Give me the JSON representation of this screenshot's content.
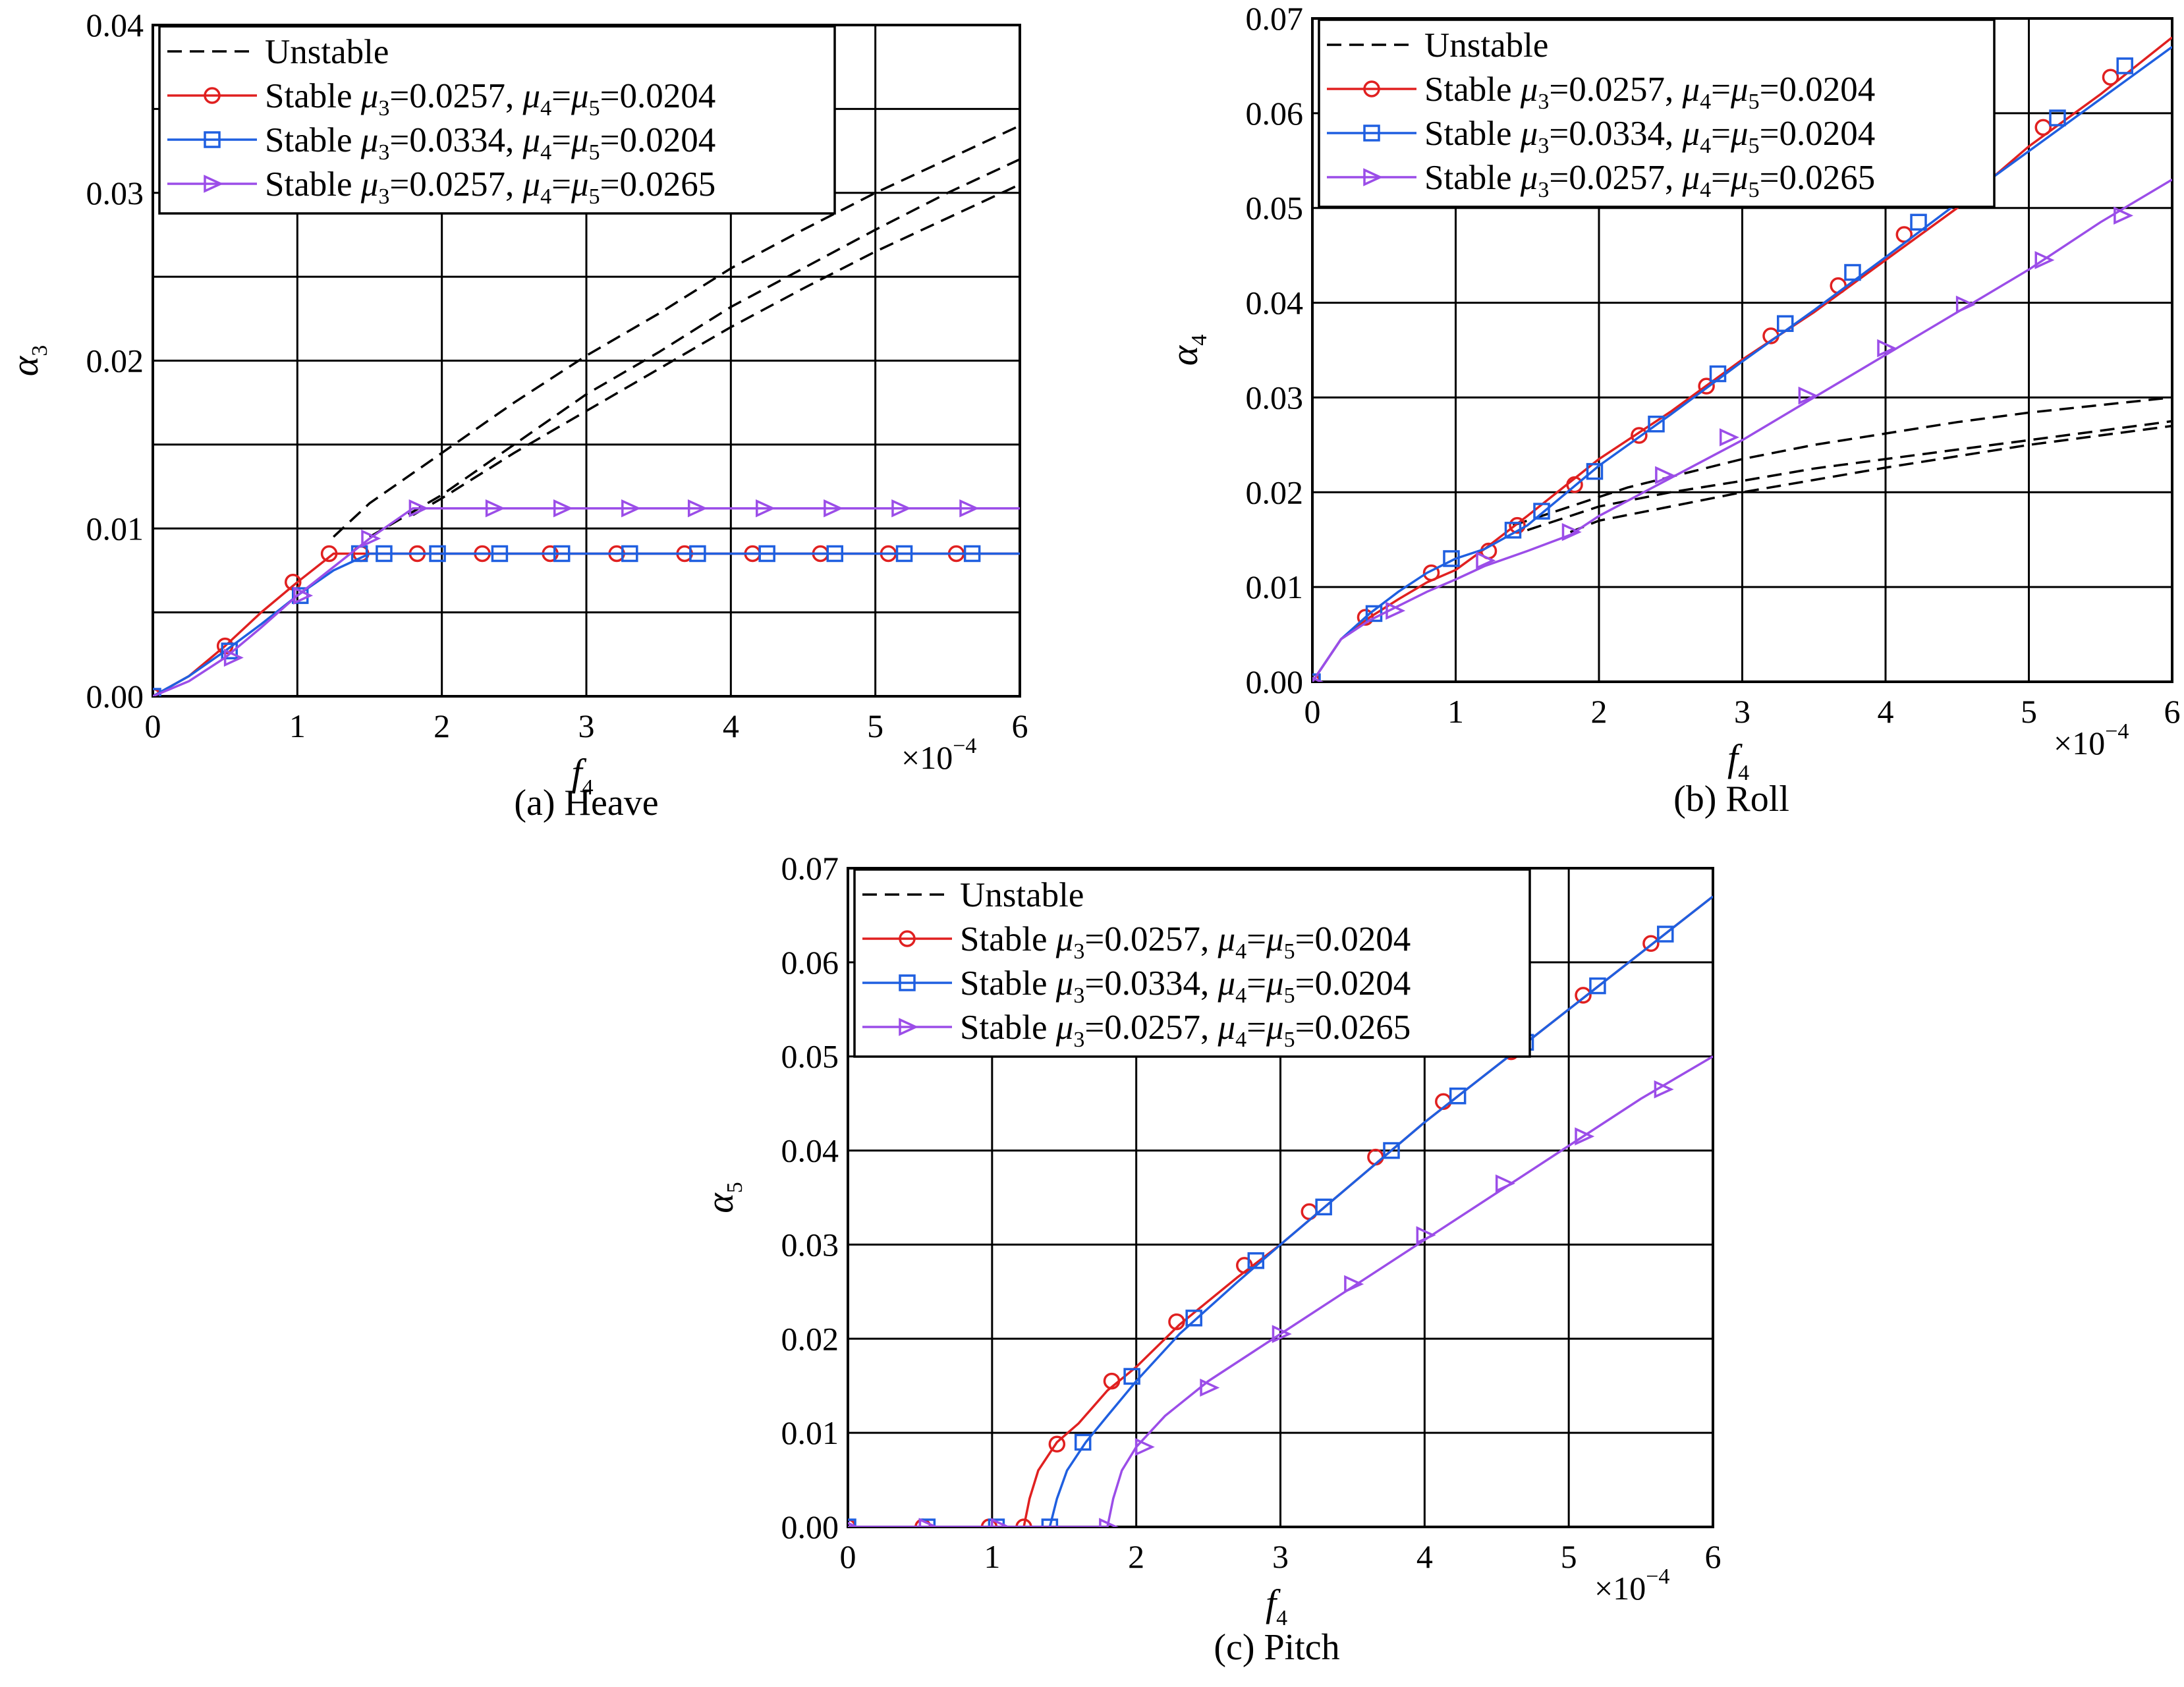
{
  "chart_data": [
    {
      "type": "line",
      "caption": "(a) Heave",
      "xlabel": "f",
      "xlabel_sub": "4",
      "ylabel": "α",
      "ylabel_sub": "3",
      "x_multiplier": "×10",
      "x_multiplier_exp": "−4",
      "xlim": [
        0,
        6
      ],
      "ylim": [
        0,
        0.04
      ],
      "x_ticks": [
        "0",
        "1",
        "2",
        "3",
        "4",
        "5",
        "6"
      ],
      "y_ticks": [
        "0.00",
        "0.01",
        "0.02",
        "0.03",
        "0.04"
      ],
      "x_grid": [
        0,
        1,
        2,
        3,
        4,
        5,
        6
      ],
      "y_grid": [
        0.005,
        0.01,
        0.015,
        0.02,
        0.025,
        0.03,
        0.035
      ],
      "legend": [
        {
          "kind": "dash",
          "color": "#000000",
          "marker": "none",
          "text": "Unstable"
        },
        {
          "kind": "solid",
          "color": "#e02020",
          "marker": "circle",
          "text": "Stable",
          "mu3": "0.0257",
          "mu45": "0.0204"
        },
        {
          "kind": "solid",
          "color": "#1f5fe0",
          "marker": "square",
          "text": "Stable",
          "mu3": "0.0334",
          "mu45": "0.0204"
        },
        {
          "kind": "solid",
          "color": "#9b4de8",
          "marker": "triangle",
          "text": "Stable",
          "mu3": "0.0257",
          "mu45": "0.0265"
        }
      ],
      "series": [
        {
          "style": "unstable",
          "color": "#000000",
          "x": [
            1.25,
            1.5,
            2,
            2.5,
            3,
            3.5,
            4,
            4.5,
            5,
            5.5,
            6
          ],
          "y": [
            0.0095,
            0.0115,
            0.0145,
            0.0175,
            0.0203,
            0.0228,
            0.0255,
            0.0278,
            0.03,
            0.032,
            0.034
          ]
        },
        {
          "style": "unstable",
          "color": "#000000",
          "x": [
            1.5,
            2,
            2.5,
            3,
            3.5,
            4,
            4.5,
            5,
            5.5,
            6
          ],
          "y": [
            0.0095,
            0.012,
            0.015,
            0.018,
            0.0205,
            0.0232,
            0.0255,
            0.0278,
            0.03,
            0.032
          ]
        },
        {
          "style": "unstable",
          "color": "#000000",
          "x": [
            1.8,
            2,
            2.5,
            3,
            3.5,
            4,
            4.5,
            5,
            5.5,
            6
          ],
          "y": [
            0.0108,
            0.0118,
            0.0145,
            0.017,
            0.0195,
            0.022,
            0.0243,
            0.0265,
            0.0285,
            0.0305
          ]
        },
        {
          "style": "stable",
          "color": "#e02020",
          "marker": "circle",
          "x": [
            0,
            0.25,
            0.5,
            0.75,
            1,
            1.25,
            1.5,
            2,
            2.5,
            3,
            3.5,
            4,
            4.5,
            5,
            5.5,
            6
          ],
          "y": [
            0,
            0.0012,
            0.003,
            0.005,
            0.0068,
            0.0085,
            0.0085,
            0.0085,
            0.0085,
            0.0085,
            0.0085,
            0.0085,
            0.0085,
            0.0085,
            0.0085,
            0.0085
          ],
          "mx": [
            0,
            0.5,
            0.97,
            1.22,
            1.44,
            1.83,
            2.28,
            2.75,
            3.21,
            3.68,
            4.15,
            4.62,
            5.09,
            5.56
          ],
          "my": [
            0,
            0.003,
            0.0068,
            0.0085,
            0.0085,
            0.0085,
            0.0085,
            0.0085,
            0.0085,
            0.0085,
            0.0085,
            0.0085,
            0.0085,
            0.0085
          ]
        },
        {
          "style": "stable",
          "color": "#1f5fe0",
          "marker": "square",
          "x": [
            0,
            0.25,
            0.5,
            0.75,
            1,
            1.25,
            1.5,
            2,
            2.5,
            3,
            3.5,
            4,
            4.5,
            5,
            5.5,
            6
          ],
          "y": [
            0,
            0.0012,
            0.0027,
            0.0043,
            0.006,
            0.0075,
            0.0085,
            0.0085,
            0.0085,
            0.0085,
            0.0085,
            0.0085,
            0.0085,
            0.0085,
            0.0085,
            0.0085
          ],
          "mx": [
            0,
            0.53,
            1.02,
            1.43,
            1.6,
            1.97,
            2.4,
            2.83,
            3.3,
            3.77,
            4.25,
            4.72,
            5.2,
            5.67
          ],
          "my": [
            0,
            0.0027,
            0.006,
            0.0085,
            0.0085,
            0.0085,
            0.0085,
            0.0085,
            0.0085,
            0.0085,
            0.0085,
            0.0085,
            0.0085,
            0.0085
          ]
        },
        {
          "style": "stable",
          "color": "#9b4de8",
          "marker": "triangle",
          "x": [
            0,
            0.25,
            0.5,
            0.75,
            1,
            1.25,
            1.5,
            1.8,
            2,
            2.5,
            3,
            3.5,
            4,
            4.5,
            5,
            5.5,
            6
          ],
          "y": [
            0,
            0.0009,
            0.0023,
            0.0041,
            0.006,
            0.0077,
            0.0094,
            0.0112,
            0.0112,
            0.0112,
            0.0112,
            0.0112,
            0.0112,
            0.0112,
            0.0112,
            0.0112,
            0.0112
          ],
          "mx": [
            0.55,
            1.03,
            1.5,
            1.83,
            2.36,
            2.83,
            3.3,
            3.76,
            4.23,
            4.7,
            5.17,
            5.64
          ],
          "my": [
            0.0023,
            0.006,
            0.0094,
            0.0112,
            0.0112,
            0.0112,
            0.0112,
            0.0112,
            0.0112,
            0.0112,
            0.0112,
            0.0112
          ]
        }
      ]
    },
    {
      "type": "line",
      "caption": "(b) Roll",
      "xlabel": "f",
      "xlabel_sub": "4",
      "ylabel": "α",
      "ylabel_sub": "4",
      "x_multiplier": "×10",
      "x_multiplier_exp": "−4",
      "xlim": [
        0,
        6
      ],
      "ylim": [
        0,
        0.07
      ],
      "x_ticks": [
        "0",
        "1",
        "2",
        "3",
        "4",
        "5",
        "6"
      ],
      "y_ticks": [
        "0.00",
        "0.01",
        "0.02",
        "0.03",
        "0.04",
        "0.05",
        "0.06",
        "0.07"
      ],
      "x_grid": [
        0,
        1,
        2,
        3,
        4,
        5,
        6
      ],
      "y_grid": [
        0.01,
        0.02,
        0.03,
        0.04,
        0.05,
        0.06
      ],
      "legend": [
        {
          "kind": "dash",
          "color": "#000000",
          "marker": "none",
          "text": "Unstable"
        },
        {
          "kind": "solid",
          "color": "#e02020",
          "marker": "circle",
          "text": "Stable",
          "mu3": "0.0257",
          "mu45": "0.0204"
        },
        {
          "kind": "solid",
          "color": "#1f5fe0",
          "marker": "square",
          "text": "Stable",
          "mu3": "0.0334",
          "mu45": "0.0204"
        },
        {
          "kind": "solid",
          "color": "#9b4de8",
          "marker": "triangle",
          "text": "Stable",
          "mu3": "0.0257",
          "mu45": "0.0265"
        }
      ],
      "series": [
        {
          "style": "unstable",
          "color": "#000000",
          "x": [
            1.4,
            1.8,
            2.2,
            2.6,
            3,
            3.5,
            4,
            4.5,
            5,
            5.5,
            6
          ],
          "y": [
            0.0165,
            0.0185,
            0.0205,
            0.022,
            0.0235,
            0.025,
            0.0262,
            0.0274,
            0.0284,
            0.0292,
            0.03
          ]
        },
        {
          "style": "unstable",
          "color": "#000000",
          "x": [
            1.5,
            2,
            2.5,
            3,
            3.5,
            4,
            4.5,
            5,
            5.5,
            6
          ],
          "y": [
            0.016,
            0.0185,
            0.02,
            0.0212,
            0.0225,
            0.0235,
            0.0245,
            0.0255,
            0.0265,
            0.0275
          ]
        },
        {
          "style": "unstable",
          "color": "#000000",
          "x": [
            1.8,
            2,
            2.5,
            3,
            3.5,
            4,
            4.5,
            5,
            5.5,
            6
          ],
          "y": [
            0.0158,
            0.017,
            0.0185,
            0.02,
            0.0213,
            0.0226,
            0.0238,
            0.025,
            0.026,
            0.027
          ]
        },
        {
          "style": "stable",
          "color": "#e02020",
          "marker": "circle",
          "x": [
            0,
            0.2,
            0.4,
            0.6,
            0.8,
            1,
            1.2,
            1.5,
            2,
            2.5,
            3,
            3.5,
            4,
            4.5,
            5,
            5.5,
            6
          ],
          "y": [
            0,
            0.0045,
            0.0068,
            0.0087,
            0.0105,
            0.0118,
            0.014,
            0.0175,
            0.0235,
            0.0285,
            0.034,
            0.039,
            0.0445,
            0.05,
            0.0565,
            0.062,
            0.068
          ],
          "mx": [
            0,
            0.37,
            0.83,
            1.23,
            1.43,
            1.83,
            2.28,
            2.75,
            3.2,
            3.67,
            4.13,
            4.6,
            5.1,
            5.57
          ],
          "my": [
            0,
            0.0068,
            0.0115,
            0.0138,
            0.0165,
            0.0208,
            0.026,
            0.0312,
            0.0365,
            0.0418,
            0.0472,
            0.0528,
            0.0585,
            0.0638
          ]
        },
        {
          "style": "stable",
          "color": "#1f5fe0",
          "marker": "square",
          "x": [
            0,
            0.2,
            0.4,
            0.6,
            0.8,
            1,
            1.2,
            1.5,
            2,
            2.5,
            3,
            3.5,
            4,
            4.5,
            5,
            5.5,
            6
          ],
          "y": [
            0,
            0.0045,
            0.0072,
            0.0095,
            0.0115,
            0.013,
            0.014,
            0.0165,
            0.0228,
            0.0282,
            0.0338,
            0.0392,
            0.0448,
            0.0505,
            0.056,
            0.0615,
            0.067
          ],
          "mx": [
            0,
            0.43,
            0.97,
            1.4,
            1.6,
            1.97,
            2.4,
            2.83,
            3.3,
            3.77,
            4.23,
            4.7,
            5.2,
            5.67
          ],
          "my": [
            0,
            0.0072,
            0.013,
            0.016,
            0.018,
            0.0222,
            0.0272,
            0.0325,
            0.0378,
            0.0432,
            0.0485,
            0.054,
            0.0595,
            0.065
          ]
        },
        {
          "style": "stable",
          "color": "#9b4de8",
          "marker": "triangle",
          "x": [
            0,
            0.2,
            0.4,
            0.6,
            0.8,
            1,
            1.2,
            1.5,
            1.8,
            2,
            2.5,
            3,
            3.5,
            4,
            4.5,
            5,
            5.5,
            6
          ],
          "y": [
            0,
            0.0045,
            0.0065,
            0.008,
            0.0095,
            0.0108,
            0.0122,
            0.0138,
            0.0155,
            0.0175,
            0.0215,
            0.0255,
            0.03,
            0.0345,
            0.039,
            0.0435,
            0.0485,
            0.053
          ],
          "mx": [
            0,
            0.57,
            1.2,
            1.8,
            2.45,
            2.9,
            3.45,
            4,
            4.55,
            5.1,
            5.65
          ],
          "my": [
            0,
            0.0075,
            0.0128,
            0.0158,
            0.0218,
            0.0258,
            0.0302,
            0.0352,
            0.0398,
            0.0445,
            0.0492
          ]
        }
      ]
    },
    {
      "type": "line",
      "caption": "(c) Pitch",
      "xlabel": "f",
      "xlabel_sub": "4",
      "ylabel": "α",
      "ylabel_sub": "5",
      "x_multiplier": "×10",
      "x_multiplier_exp": "−4",
      "xlim": [
        0,
        6
      ],
      "ylim": [
        0,
        0.07
      ],
      "x_ticks": [
        "0",
        "1",
        "2",
        "3",
        "4",
        "5",
        "6"
      ],
      "y_ticks": [
        "0.00",
        "0.01",
        "0.02",
        "0.03",
        "0.04",
        "0.05",
        "0.06",
        "0.07"
      ],
      "x_grid": [
        0,
        1,
        2,
        3,
        4,
        5,
        6
      ],
      "y_grid": [
        0.01,
        0.02,
        0.03,
        0.04,
        0.05,
        0.06
      ],
      "legend": [
        {
          "kind": "dash",
          "color": "#000000",
          "marker": "none",
          "text": "Unstable"
        },
        {
          "kind": "solid",
          "color": "#e02020",
          "marker": "circle",
          "text": "Stable",
          "mu3": "0.0257",
          "mu45": "0.0204"
        },
        {
          "kind": "solid",
          "color": "#1f5fe0",
          "marker": "square",
          "text": "Stable",
          "mu3": "0.0334",
          "mu45": "0.0204"
        },
        {
          "kind": "solid",
          "color": "#9b4de8",
          "marker": "triangle",
          "text": "Stable",
          "mu3": "0.0257",
          "mu45": "0.0265"
        }
      ],
      "series": [
        {
          "style": "stable",
          "color": "#e02020",
          "marker": "circle",
          "x": [
            0,
            0.5,
            1,
            1.22,
            1.26,
            1.32,
            1.45,
            1.6,
            1.8,
            2,
            2.3,
            2.7,
            3,
            3.5,
            4,
            4.5,
            5,
            5.5,
            6
          ],
          "y": [
            0,
            0,
            0,
            0,
            0.003,
            0.006,
            0.009,
            0.011,
            0.0145,
            0.017,
            0.0215,
            0.0265,
            0.03,
            0.0365,
            0.043,
            0.049,
            0.055,
            0.061,
            0.067
          ],
          "mx": [
            0,
            0.52,
            0.98,
            1.22,
            1.45,
            1.83,
            2.28,
            2.75,
            3.2,
            3.66,
            4.13,
            4.6,
            5.1,
            5.57
          ],
          "my": [
            0,
            0,
            0,
            0,
            0.0088,
            0.0155,
            0.0218,
            0.0278,
            0.0335,
            0.0393,
            0.0452,
            0.0505,
            0.0565,
            0.062
          ]
        },
        {
          "style": "stable",
          "color": "#1f5fe0",
          "marker": "square",
          "x": [
            0,
            0.5,
            1,
            1.4,
            1.45,
            1.52,
            1.65,
            1.8,
            2,
            2.3,
            2.7,
            3,
            3.5,
            4,
            4.5,
            5,
            5.5,
            6
          ],
          "y": [
            0,
            0,
            0,
            0,
            0.003,
            0.006,
            0.009,
            0.0118,
            0.0155,
            0.0205,
            0.026,
            0.03,
            0.0365,
            0.043,
            0.049,
            0.055,
            0.061,
            0.067
          ],
          "mx": [
            0,
            0.55,
            1.03,
            1.4,
            1.63,
            1.97,
            2.4,
            2.83,
            3.3,
            3.77,
            4.23,
            4.7,
            5.2,
            5.67
          ],
          "my": [
            0,
            0,
            0,
            0,
            0.009,
            0.016,
            0.0222,
            0.0283,
            0.034,
            0.04,
            0.0458,
            0.0515,
            0.0575,
            0.063
          ]
        },
        {
          "style": "stable",
          "color": "#9b4de8",
          "marker": "triangle",
          "x": [
            0,
            0.5,
            1,
            1.5,
            1.8,
            1.84,
            1.9,
            2,
            2.2,
            2.5,
            3,
            3.5,
            4,
            4.5,
            5,
            5.5,
            6
          ],
          "y": [
            0,
            0,
            0,
            0,
            0,
            0.003,
            0.006,
            0.0085,
            0.0118,
            0.0155,
            0.0205,
            0.0255,
            0.0305,
            0.0355,
            0.0405,
            0.0455,
            0.05
          ],
          "mx": [
            0,
            0.55,
            1.05,
            1.8,
            2.05,
            2.5,
            3.0,
            3.5,
            4.0,
            4.55,
            5.1,
            5.65
          ],
          "my": [
            0,
            0,
            0,
            0,
            0.0085,
            0.0148,
            0.0205,
            0.0258,
            0.031,
            0.0365,
            0.0415,
            0.0465
          ]
        }
      ]
    }
  ]
}
